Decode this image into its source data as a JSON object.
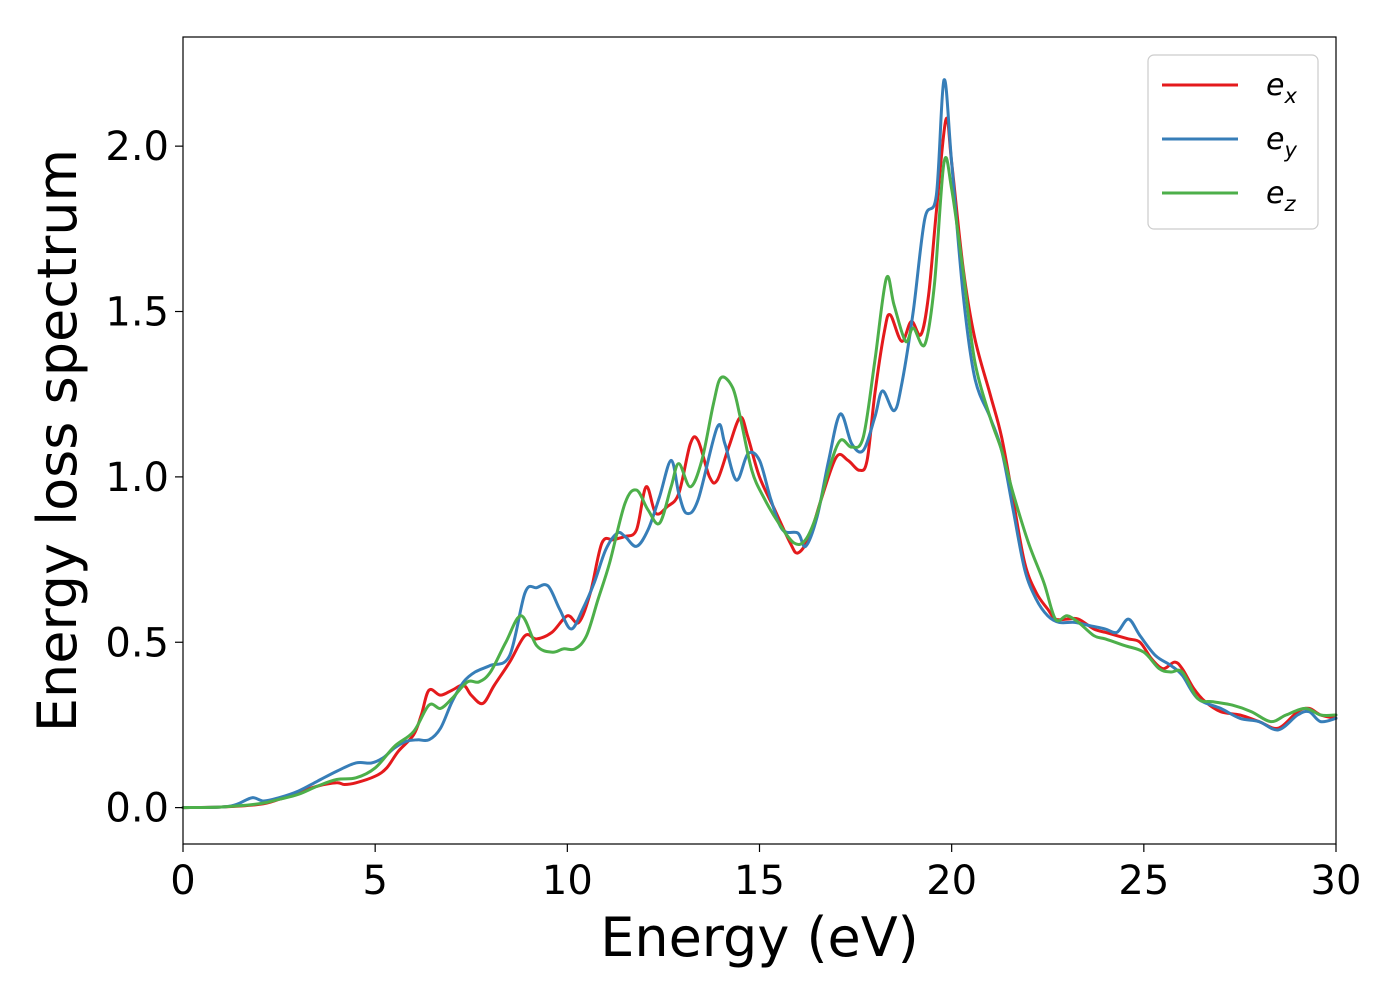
{
  "chart_data": {
    "type": "line",
    "xlabel": "Energy (eV)",
    "ylabel": "Energy loss spectrum",
    "xlim": [
      0,
      30
    ],
    "ylim": [
      -0.11,
      2.33
    ],
    "xticks": [
      0,
      5,
      10,
      15,
      20,
      25,
      30
    ],
    "xtick_labels": [
      "0",
      "5",
      "10",
      "15",
      "20",
      "25",
      "30"
    ],
    "yticks": [
      0.0,
      0.5,
      1.0,
      1.5,
      2.0
    ],
    "ytick_labels": [
      "0.0",
      "0.5",
      "1.0",
      "1.5",
      "2.0"
    ],
    "grid": false,
    "legend_position": "top-right",
    "series": [
      {
        "id": "ex",
        "name": "e",
        "subscript": "x",
        "color": "#e41a1c",
        "points": [
          [
            0,
            0
          ],
          [
            1,
            0.002
          ],
          [
            2,
            0.01
          ],
          [
            2.5,
            0.025
          ],
          [
            3,
            0.045
          ],
          [
            3.5,
            0.065
          ],
          [
            4,
            0.075
          ],
          [
            4.2,
            0.07
          ],
          [
            4.5,
            0.075
          ],
          [
            5,
            0.095
          ],
          [
            5.3,
            0.12
          ],
          [
            5.6,
            0.17
          ],
          [
            6,
            0.22
          ],
          [
            6.2,
            0.28
          ],
          [
            6.4,
            0.355
          ],
          [
            6.7,
            0.34
          ],
          [
            7,
            0.355
          ],
          [
            7.3,
            0.37
          ],
          [
            7.5,
            0.34
          ],
          [
            7.8,
            0.315
          ],
          [
            8.1,
            0.37
          ],
          [
            8.5,
            0.44
          ],
          [
            8.9,
            0.52
          ],
          [
            9.2,
            0.51
          ],
          [
            9.6,
            0.53
          ],
          [
            10,
            0.58
          ],
          [
            10.3,
            0.56
          ],
          [
            10.6,
            0.65
          ],
          [
            10.9,
            0.8
          ],
          [
            11.2,
            0.81
          ],
          [
            11.5,
            0.82
          ],
          [
            11.8,
            0.84
          ],
          [
            12.05,
            0.97
          ],
          [
            12.3,
            0.89
          ],
          [
            12.6,
            0.91
          ],
          [
            12.9,
            0.95
          ],
          [
            13.2,
            1.1
          ],
          [
            13.4,
            1.11
          ],
          [
            13.7,
            1.0
          ],
          [
            13.9,
            0.99
          ],
          [
            14.2,
            1.09
          ],
          [
            14.5,
            1.18
          ],
          [
            14.7,
            1.12
          ],
          [
            15,
            1.0
          ],
          [
            15.4,
            0.9
          ],
          [
            15.8,
            0.8
          ],
          [
            16,
            0.77
          ],
          [
            16.3,
            0.82
          ],
          [
            16.6,
            0.93
          ],
          [
            17,
            1.06
          ],
          [
            17.3,
            1.05
          ],
          [
            17.6,
            1.02
          ],
          [
            17.8,
            1.05
          ],
          [
            18,
            1.25
          ],
          [
            18.25,
            1.44
          ],
          [
            18.4,
            1.49
          ],
          [
            18.7,
            1.41
          ],
          [
            18.95,
            1.47
          ],
          [
            19.2,
            1.43
          ],
          [
            19.4,
            1.55
          ],
          [
            19.6,
            1.8
          ],
          [
            19.85,
            2.08
          ],
          [
            20,
            1.95
          ],
          [
            20.3,
            1.63
          ],
          [
            20.6,
            1.42
          ],
          [
            21,
            1.25
          ],
          [
            21.3,
            1.12
          ],
          [
            21.6,
            0.93
          ],
          [
            21.9,
            0.74
          ],
          [
            22.2,
            0.65
          ],
          [
            22.5,
            0.6
          ],
          [
            22.7,
            0.57
          ],
          [
            23,
            0.57
          ],
          [
            23.3,
            0.57
          ],
          [
            23.7,
            0.54
          ],
          [
            24,
            0.53
          ],
          [
            24.3,
            0.52
          ],
          [
            24.6,
            0.51
          ],
          [
            24.9,
            0.5
          ],
          [
            25.2,
            0.45
          ],
          [
            25.5,
            0.42
          ],
          [
            25.8,
            0.44
          ],
          [
            26,
            0.42
          ],
          [
            26.3,
            0.36
          ],
          [
            26.6,
            0.32
          ],
          [
            27,
            0.29
          ],
          [
            27.5,
            0.28
          ],
          [
            28,
            0.26
          ],
          [
            28.5,
            0.24
          ],
          [
            29,
            0.29
          ],
          [
            29.3,
            0.3
          ],
          [
            29.6,
            0.28
          ],
          [
            30,
            0.27
          ]
        ]
      },
      {
        "id": "ey",
        "name": "e",
        "subscript": "y",
        "color": "#377eb8",
        "points": [
          [
            0,
            0
          ],
          [
            1,
            0.002
          ],
          [
            1.4,
            0.01
          ],
          [
            1.8,
            0.03
          ],
          [
            2.1,
            0.02
          ],
          [
            2.5,
            0.03
          ],
          [
            3,
            0.05
          ],
          [
            3.5,
            0.08
          ],
          [
            4,
            0.11
          ],
          [
            4.5,
            0.135
          ],
          [
            4.9,
            0.135
          ],
          [
            5.2,
            0.15
          ],
          [
            5.5,
            0.18
          ],
          [
            5.8,
            0.2
          ],
          [
            6.1,
            0.205
          ],
          [
            6.4,
            0.205
          ],
          [
            6.7,
            0.24
          ],
          [
            7,
            0.32
          ],
          [
            7.3,
            0.38
          ],
          [
            7.6,
            0.41
          ],
          [
            8,
            0.43
          ],
          [
            8.5,
            0.46
          ],
          [
            8.9,
            0.65
          ],
          [
            9.2,
            0.665
          ],
          [
            9.5,
            0.67
          ],
          [
            9.8,
            0.6
          ],
          [
            10.1,
            0.54
          ],
          [
            10.4,
            0.6
          ],
          [
            10.7,
            0.68
          ],
          [
            11,
            0.78
          ],
          [
            11.3,
            0.83
          ],
          [
            11.5,
            0.82
          ],
          [
            11.8,
            0.79
          ],
          [
            12.1,
            0.84
          ],
          [
            12.4,
            0.94
          ],
          [
            12.7,
            1.05
          ],
          [
            12.9,
            0.95
          ],
          [
            13.1,
            0.89
          ],
          [
            13.4,
            0.93
          ],
          [
            13.9,
            1.15
          ],
          [
            14.1,
            1.1
          ],
          [
            14.4,
            0.99
          ],
          [
            14.7,
            1.07
          ],
          [
            15,
            1.05
          ],
          [
            15.3,
            0.93
          ],
          [
            15.6,
            0.84
          ],
          [
            16,
            0.83
          ],
          [
            16.2,
            0.79
          ],
          [
            16.5,
            0.88
          ],
          [
            16.8,
            1.05
          ],
          [
            17.1,
            1.19
          ],
          [
            17.4,
            1.1
          ],
          [
            17.7,
            1.08
          ],
          [
            18,
            1.18
          ],
          [
            18.2,
            1.26
          ],
          [
            18.5,
            1.2
          ],
          [
            18.7,
            1.28
          ],
          [
            19,
            1.5
          ],
          [
            19.3,
            1.78
          ],
          [
            19.6,
            1.85
          ],
          [
            19.8,
            2.2
          ],
          [
            20,
            1.95
          ],
          [
            20.3,
            1.55
          ],
          [
            20.6,
            1.3
          ],
          [
            21,
            1.18
          ],
          [
            21.3,
            1.08
          ],
          [
            21.6,
            0.9
          ],
          [
            21.9,
            0.72
          ],
          [
            22.2,
            0.63
          ],
          [
            22.5,
            0.58
          ],
          [
            22.8,
            0.56
          ],
          [
            23.2,
            0.56
          ],
          [
            23.6,
            0.55
          ],
          [
            24,
            0.54
          ],
          [
            24.3,
            0.53
          ],
          [
            24.6,
            0.57
          ],
          [
            24.9,
            0.52
          ],
          [
            25.3,
            0.46
          ],
          [
            25.7,
            0.43
          ],
          [
            26,
            0.4
          ],
          [
            26.4,
            0.33
          ],
          [
            27,
            0.3
          ],
          [
            27.5,
            0.27
          ],
          [
            28,
            0.26
          ],
          [
            28.5,
            0.235
          ],
          [
            29,
            0.28
          ],
          [
            29.3,
            0.29
          ],
          [
            29.6,
            0.26
          ],
          [
            30,
            0.27
          ]
        ]
      },
      {
        "id": "ez",
        "name": "e",
        "subscript": "z",
        "color": "#4daf4a",
        "points": [
          [
            0,
            0
          ],
          [
            1,
            0.002
          ],
          [
            2,
            0.012
          ],
          [
            2.5,
            0.025
          ],
          [
            3,
            0.04
          ],
          [
            3.5,
            0.065
          ],
          [
            4,
            0.085
          ],
          [
            4.5,
            0.09
          ],
          [
            5,
            0.12
          ],
          [
            5.5,
            0.185
          ],
          [
            6,
            0.23
          ],
          [
            6.4,
            0.31
          ],
          [
            6.7,
            0.3
          ],
          [
            7,
            0.33
          ],
          [
            7.4,
            0.38
          ],
          [
            7.7,
            0.38
          ],
          [
            8,
            0.41
          ],
          [
            8.4,
            0.5
          ],
          [
            8.8,
            0.58
          ],
          [
            9.2,
            0.49
          ],
          [
            9.6,
            0.47
          ],
          [
            9.9,
            0.48
          ],
          [
            10.2,
            0.48
          ],
          [
            10.5,
            0.52
          ],
          [
            10.8,
            0.63
          ],
          [
            11.1,
            0.74
          ],
          [
            11.5,
            0.92
          ],
          [
            11.8,
            0.96
          ],
          [
            12.1,
            0.9
          ],
          [
            12.4,
            0.86
          ],
          [
            12.7,
            0.97
          ],
          [
            12.9,
            1.04
          ],
          [
            13.2,
            0.97
          ],
          [
            13.5,
            1.05
          ],
          [
            13.8,
            1.22
          ],
          [
            14,
            1.3
          ],
          [
            14.3,
            1.27
          ],
          [
            14.5,
            1.18
          ],
          [
            14.8,
            1.02
          ],
          [
            15.1,
            0.94
          ],
          [
            15.5,
            0.86
          ],
          [
            15.9,
            0.8
          ],
          [
            16.2,
            0.81
          ],
          [
            16.5,
            0.89
          ],
          [
            16.8,
            1.02
          ],
          [
            17.1,
            1.11
          ],
          [
            17.4,
            1.09
          ],
          [
            17.7,
            1.12
          ],
          [
            18,
            1.35
          ],
          [
            18.3,
            1.6
          ],
          [
            18.5,
            1.52
          ],
          [
            18.8,
            1.41
          ],
          [
            19,
            1.45
          ],
          [
            19.3,
            1.4
          ],
          [
            19.55,
            1.58
          ],
          [
            19.8,
            1.95
          ],
          [
            20,
            1.87
          ],
          [
            20.3,
            1.62
          ],
          [
            20.6,
            1.35
          ],
          [
            21,
            1.18
          ],
          [
            21.3,
            1.08
          ],
          [
            21.6,
            0.95
          ],
          [
            22,
            0.8
          ],
          [
            22.4,
            0.68
          ],
          [
            22.7,
            0.57
          ],
          [
            23,
            0.58
          ],
          [
            23.3,
            0.56
          ],
          [
            23.7,
            0.52
          ],
          [
            24,
            0.51
          ],
          [
            24.5,
            0.49
          ],
          [
            25,
            0.47
          ],
          [
            25.4,
            0.42
          ],
          [
            25.7,
            0.41
          ],
          [
            26,
            0.41
          ],
          [
            26.4,
            0.33
          ],
          [
            26.8,
            0.32
          ],
          [
            27.3,
            0.31
          ],
          [
            27.8,
            0.29
          ],
          [
            28.3,
            0.26
          ],
          [
            28.7,
            0.28
          ],
          [
            29.2,
            0.3
          ],
          [
            29.6,
            0.28
          ],
          [
            30,
            0.28
          ]
        ]
      }
    ]
  }
}
